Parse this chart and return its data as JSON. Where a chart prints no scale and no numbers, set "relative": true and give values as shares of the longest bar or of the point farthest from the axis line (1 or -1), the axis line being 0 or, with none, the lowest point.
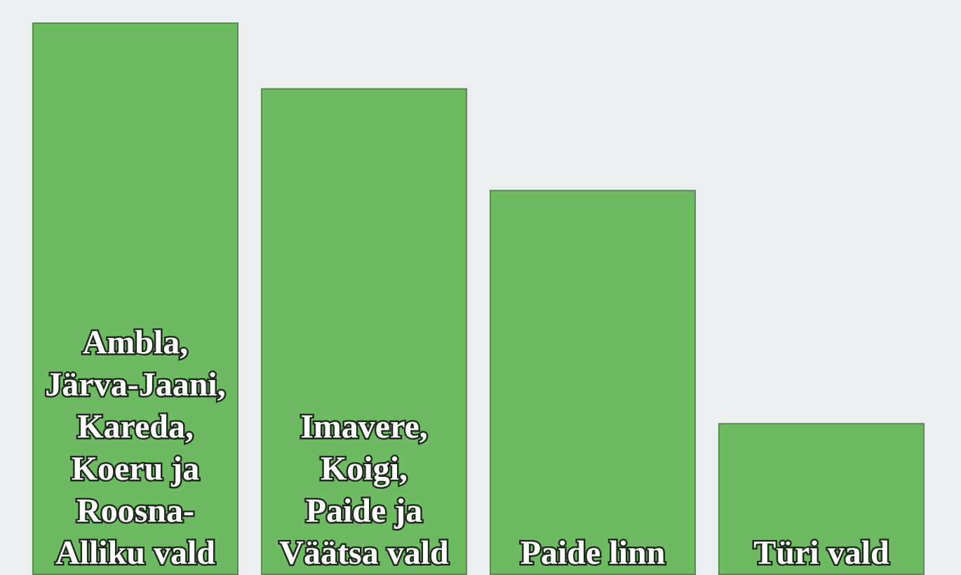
{
  "chart_data": {
    "type": "bar",
    "relative": true,
    "categories": [
      "Ambla, Järva-Jaani, Kareda, Koeru ja Roosna-Alliku vald",
      "Imavere, Koigi, Paide ja Väätsa vald",
      "Paide linn",
      "Türi vald"
    ],
    "values": [
      1,
      0.881,
      0.697,
      0.275
    ],
    "color": "#6dba62"
  }
}
